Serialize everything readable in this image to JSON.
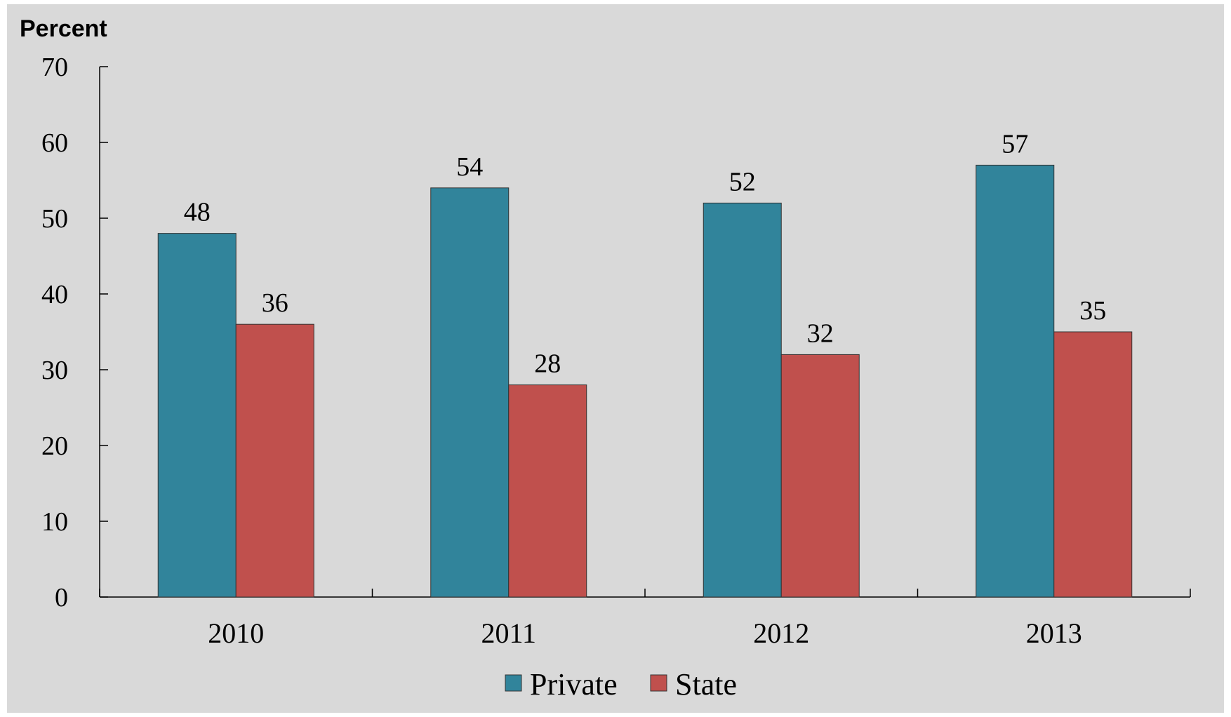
{
  "chart_data": {
    "type": "bar",
    "title": "",
    "xlabel": "",
    "ylabel": "Percent",
    "categories": [
      "2010",
      "2011",
      "2012",
      "2013"
    ],
    "series": [
      {
        "name": "Private",
        "values": [
          48,
          54,
          52,
          57
        ],
        "color": "#31849b"
      },
      {
        "name": "State",
        "values": [
          36,
          28,
          32,
          35
        ],
        "color": "#c0504d"
      }
    ],
    "data_labels": [
      [
        "48",
        "54",
        "52",
        "57"
      ],
      [
        "36",
        "28",
        "32",
        "35"
      ]
    ],
    "ylim": [
      0,
      70
    ],
    "yticks": [
      "0",
      "10",
      "20",
      "30",
      "40",
      "50",
      "60",
      "70"
    ],
    "grid": false,
    "legend_position": "bottom-center",
    "background_color": "#d9d9d9"
  }
}
